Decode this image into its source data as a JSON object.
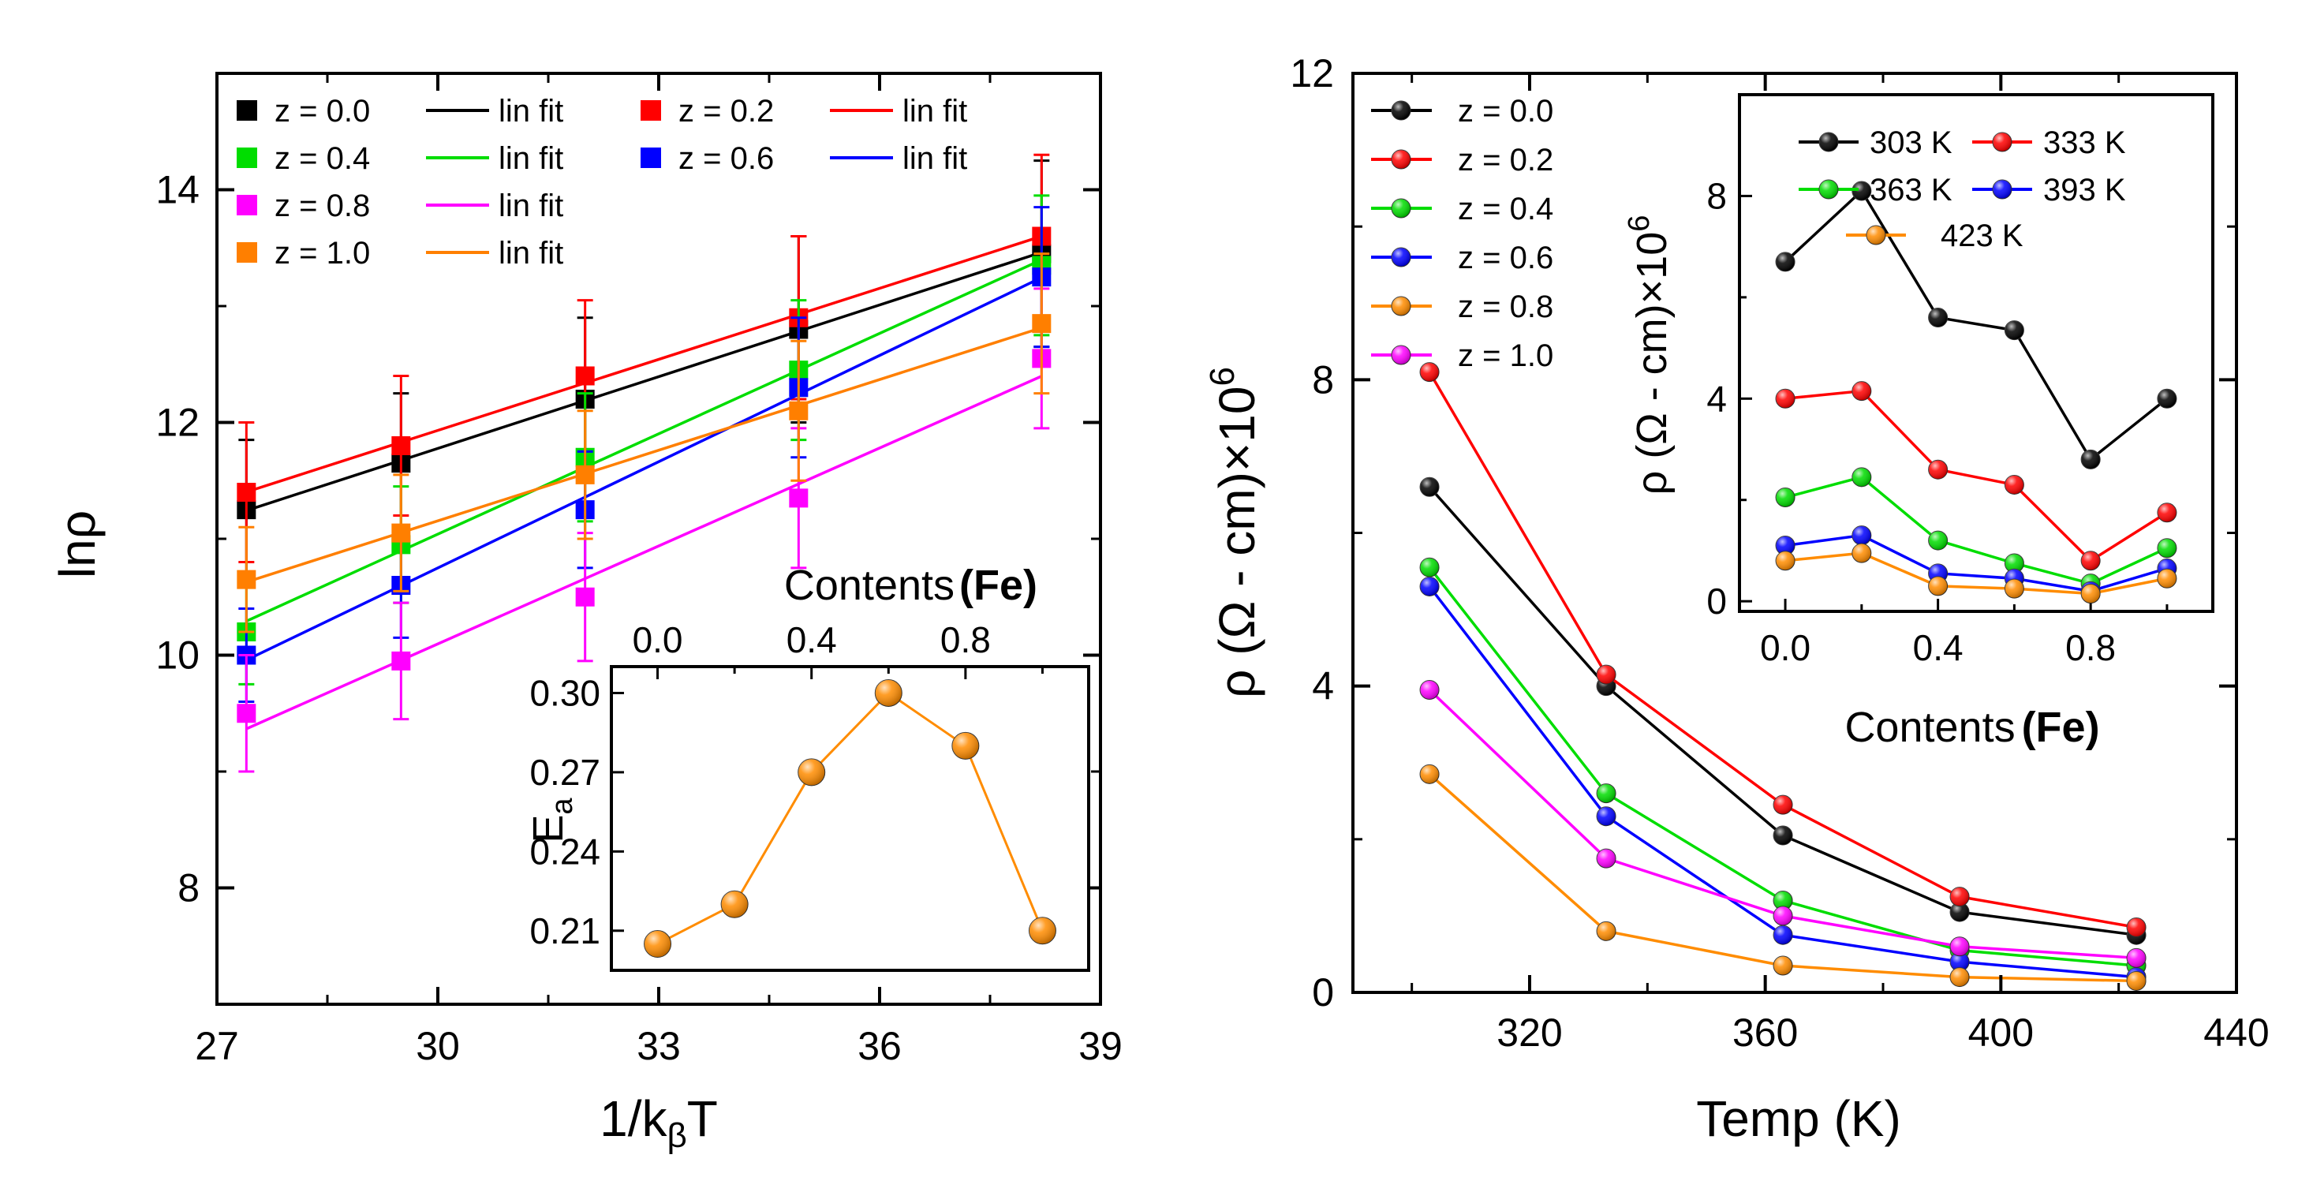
{
  "chart_data": [
    {
      "id": "left-main",
      "type": "scatter",
      "xlabel_main": "1/k",
      "xlabel_sub": "β",
      "xlabel_tail": "T",
      "ylabel": "lnρ",
      "xlim": [
        27,
        39
      ],
      "ylim": [
        7,
        15
      ],
      "xticks": [
        27,
        30,
        33,
        36,
        39
      ],
      "yticks": [
        8,
        10,
        12,
        14
      ],
      "x": [
        27.4,
        29.5,
        32.0,
        34.9,
        38.2
      ],
      "fit_label": "lin fit",
      "series": [
        {
          "name": "z = 0.0",
          "color": "#000000",
          "values": [
            11.25,
            11.65,
            12.2,
            12.8,
            13.45
          ],
          "err": [
            0.6,
            0.6,
            0.7,
            0.8,
            0.8
          ]
        },
        {
          "name": "z = 0.2",
          "color": "#ff0000",
          "values": [
            11.4,
            11.8,
            12.4,
            12.9,
            13.6
          ],
          "err": [
            0.6,
            0.6,
            0.65,
            0.7,
            0.7
          ]
        },
        {
          "name": "z = 0.4",
          "color": "#00dd00",
          "values": [
            10.2,
            10.95,
            11.7,
            12.45,
            13.35
          ],
          "err": [
            0.45,
            0.5,
            0.55,
            0.6,
            0.6
          ]
        },
        {
          "name": "z = 0.6",
          "color": "#0000ff",
          "values": [
            10.0,
            10.6,
            11.25,
            12.3,
            13.25
          ],
          "err": [
            0.4,
            0.45,
            0.5,
            0.6,
            0.6
          ]
        },
        {
          "name": "z = 0.8",
          "color": "#ff00ff",
          "values": [
            9.5,
            9.95,
            10.5,
            11.35,
            12.55
          ],
          "err": [
            0.5,
            0.5,
            0.55,
            0.6,
            0.6
          ]
        },
        {
          "name": "z = 1.0",
          "color": "#ff7f00",
          "values": [
            10.65,
            11.05,
            11.55,
            12.1,
            12.85
          ],
          "err": [
            0.45,
            0.5,
            0.55,
            0.6,
            0.6
          ]
        }
      ]
    },
    {
      "id": "left-inset",
      "type": "line",
      "xlabel": "Contents",
      "xlabel_bold": "(Fe)",
      "ylabel_main": "E",
      "ylabel_sub": "a",
      "xlim": [
        -0.12,
        1.12
      ],
      "ylim": [
        0.195,
        0.31
      ],
      "xticks": [
        "0.0",
        "0.4",
        "0.8"
      ],
      "xtick_values": [
        0.0,
        0.4,
        0.8
      ],
      "yticks": [
        "0.21",
        "0.24",
        "0.27",
        "0.30"
      ],
      "ytick_values": [
        0.21,
        0.24,
        0.27,
        0.3
      ],
      "color": "#ff8c00",
      "x": [
        0.0,
        0.2,
        0.4,
        0.6,
        0.8,
        1.0
      ],
      "values": [
        0.205,
        0.22,
        0.27,
        0.3,
        0.28,
        0.21
      ]
    },
    {
      "id": "right-main",
      "type": "line",
      "xlabel": "Temp (K)",
      "ylabel": "ρ (Ω - cm)×10",
      "ylabel_sup": "6",
      "xlim": [
        290,
        440
      ],
      "ylim": [
        0,
        12
      ],
      "xticks": [
        320,
        360,
        400,
        440
      ],
      "yticks": [
        0,
        4,
        8,
        12
      ],
      "x": [
        303,
        333,
        363,
        393,
        423
      ],
      "series": [
        {
          "name": "z = 0.0",
          "color": "#000000",
          "values": [
            6.6,
            4.0,
            2.05,
            1.05,
            0.75
          ]
        },
        {
          "name": "z = 0.2",
          "color": "#ff0000",
          "values": [
            8.1,
            4.15,
            2.45,
            1.25,
            0.85
          ]
        },
        {
          "name": "z = 0.4",
          "color": "#00dd00",
          "values": [
            5.55,
            2.6,
            1.2,
            0.55,
            0.35
          ]
        },
        {
          "name": "z = 0.6",
          "color": "#0000ff",
          "values": [
            5.3,
            2.3,
            0.75,
            0.4,
            0.2
          ]
        },
        {
          "name": "z = 0.8",
          "color": "#ff8c00",
          "values": [
            2.85,
            0.8,
            0.35,
            0.2,
            0.15
          ]
        },
        {
          "name": "z = 1.0",
          "color": "#ff00ff",
          "values": [
            3.95,
            1.75,
            1.0,
            0.6,
            0.45
          ]
        }
      ]
    },
    {
      "id": "right-inset",
      "type": "line",
      "xlabel": "Contents",
      "xlabel_bold": "(Fe)",
      "ylabel": "ρ (Ω - cm)×10",
      "ylabel_sup": "6",
      "xlim": [
        -0.12,
        1.12
      ],
      "ylim": [
        -0.2,
        10
      ],
      "xticks": [
        "0.0",
        "0.4",
        "0.8"
      ],
      "xtick_values": [
        0.0,
        0.4,
        0.8
      ],
      "yticks": [
        "0",
        "4",
        "8"
      ],
      "ytick_values": [
        0,
        4,
        8
      ],
      "x": [
        0.0,
        0.2,
        0.4,
        0.6,
        0.8,
        1.0
      ],
      "series": [
        {
          "name": "303 K",
          "color": "#000000",
          "values": [
            6.7,
            8.1,
            5.6,
            5.35,
            2.8,
            4.0
          ]
        },
        {
          "name": "333 K",
          "color": "#ff0000",
          "values": [
            4.0,
            4.15,
            2.6,
            2.3,
            0.8,
            1.75
          ]
        },
        {
          "name": "363 K",
          "color": "#00dd00",
          "values": [
            2.05,
            2.45,
            1.2,
            0.75,
            0.35,
            1.05
          ]
        },
        {
          "name": "393 K",
          "color": "#0000ff",
          "values": [
            1.1,
            1.3,
            0.55,
            0.45,
            0.2,
            0.65
          ]
        },
        {
          "name": "423 K",
          "color": "#ff8c00",
          "values": [
            0.8,
            0.95,
            0.3,
            0.25,
            0.15,
            0.45
          ]
        }
      ]
    }
  ]
}
